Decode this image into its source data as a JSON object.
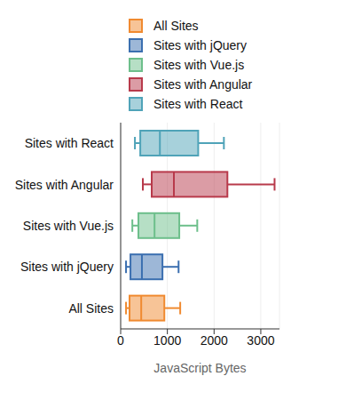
{
  "chart_data": {
    "type": "box",
    "orientation": "horizontal",
    "x_label": "JavaScript Bytes",
    "categories": [
      "All Sites",
      "Sites with jQuery",
      "Sites with Vue.js",
      "Sites with Angular",
      "Sites with React"
    ],
    "colors": [
      "#f08a30",
      "#3b6fb0",
      "#6dbf8b",
      "#b83a4b",
      "#4fa3b8"
    ],
    "min": [
      115,
      115,
      250,
      475,
      305
    ],
    "q1": [
      190,
      210,
      380,
      665,
      420
    ],
    "median": [
      440,
      455,
      725,
      1140,
      840
    ],
    "q3": [
      935,
      895,
      1255,
      2285,
      1660
    ],
    "max": [
      1275,
      1240,
      1640,
      3295,
      2210
    ],
    "xlim": [
      0,
      3400
    ],
    "xticks": [
      0,
      1000,
      2000,
      3000
    ],
    "grid": true,
    "legend": "top"
  }
}
